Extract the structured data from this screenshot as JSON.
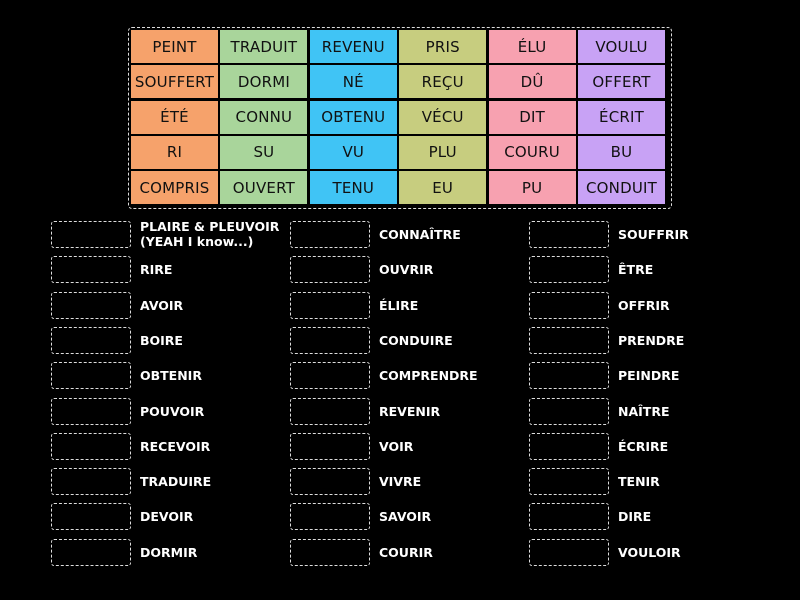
{
  "colors": {
    "orange": "#f6a26b",
    "green": "#a9d59b",
    "blue": "#40c4f5",
    "olive": "#c7cd7f",
    "pink": "#f7a1b0",
    "purple": "#c8a2f5"
  },
  "tile_rows": [
    [
      "PEINT",
      "TRADUIT",
      "REVENU",
      "PRIS",
      "ÉLU",
      "VOULU"
    ],
    [
      "SOUFFERT",
      "DORMI",
      "NÉ",
      "REÇU",
      "DÛ",
      "OFFERT"
    ],
    [
      "ÉTÉ",
      "CONNU",
      "OBTENU",
      "VÉCU",
      "DIT",
      "ÉCRIT"
    ],
    [
      "RI",
      "SU",
      "VU",
      "PLU",
      "COURU",
      "BU"
    ],
    [
      "COMPRIS",
      "OUVERT",
      "TENU",
      "EU",
      "PU",
      "CONDUIT"
    ]
  ],
  "column_colors": [
    "orange",
    "green",
    "blue",
    "olive",
    "pink",
    "purple"
  ],
  "clue_columns": [
    [
      "PLAIRE & PLEUVOIR\n(YEAH I know...)",
      "RIRE",
      "AVOIR",
      "BOIRE",
      "OBTENIR",
      "POUVOIR",
      "RECEVOIR",
      "TRADUIRE",
      "DEVOIR",
      "DORMIR"
    ],
    [
      "CONNAÎTRE",
      "OUVRIR",
      "ÉLIRE",
      "CONDUIRE",
      "COMPRENDRE",
      "REVENIR",
      "VOIR",
      "VIVRE",
      "SAVOIR",
      "COURIR"
    ],
    [
      "SOUFFRIR",
      "ÊTRE",
      "OFFRIR",
      "PRENDRE",
      "PEINDRE",
      "NAÎTRE",
      "ÉCRIRE",
      "TENIR",
      "DIRE",
      "VOULOIR"
    ]
  ]
}
